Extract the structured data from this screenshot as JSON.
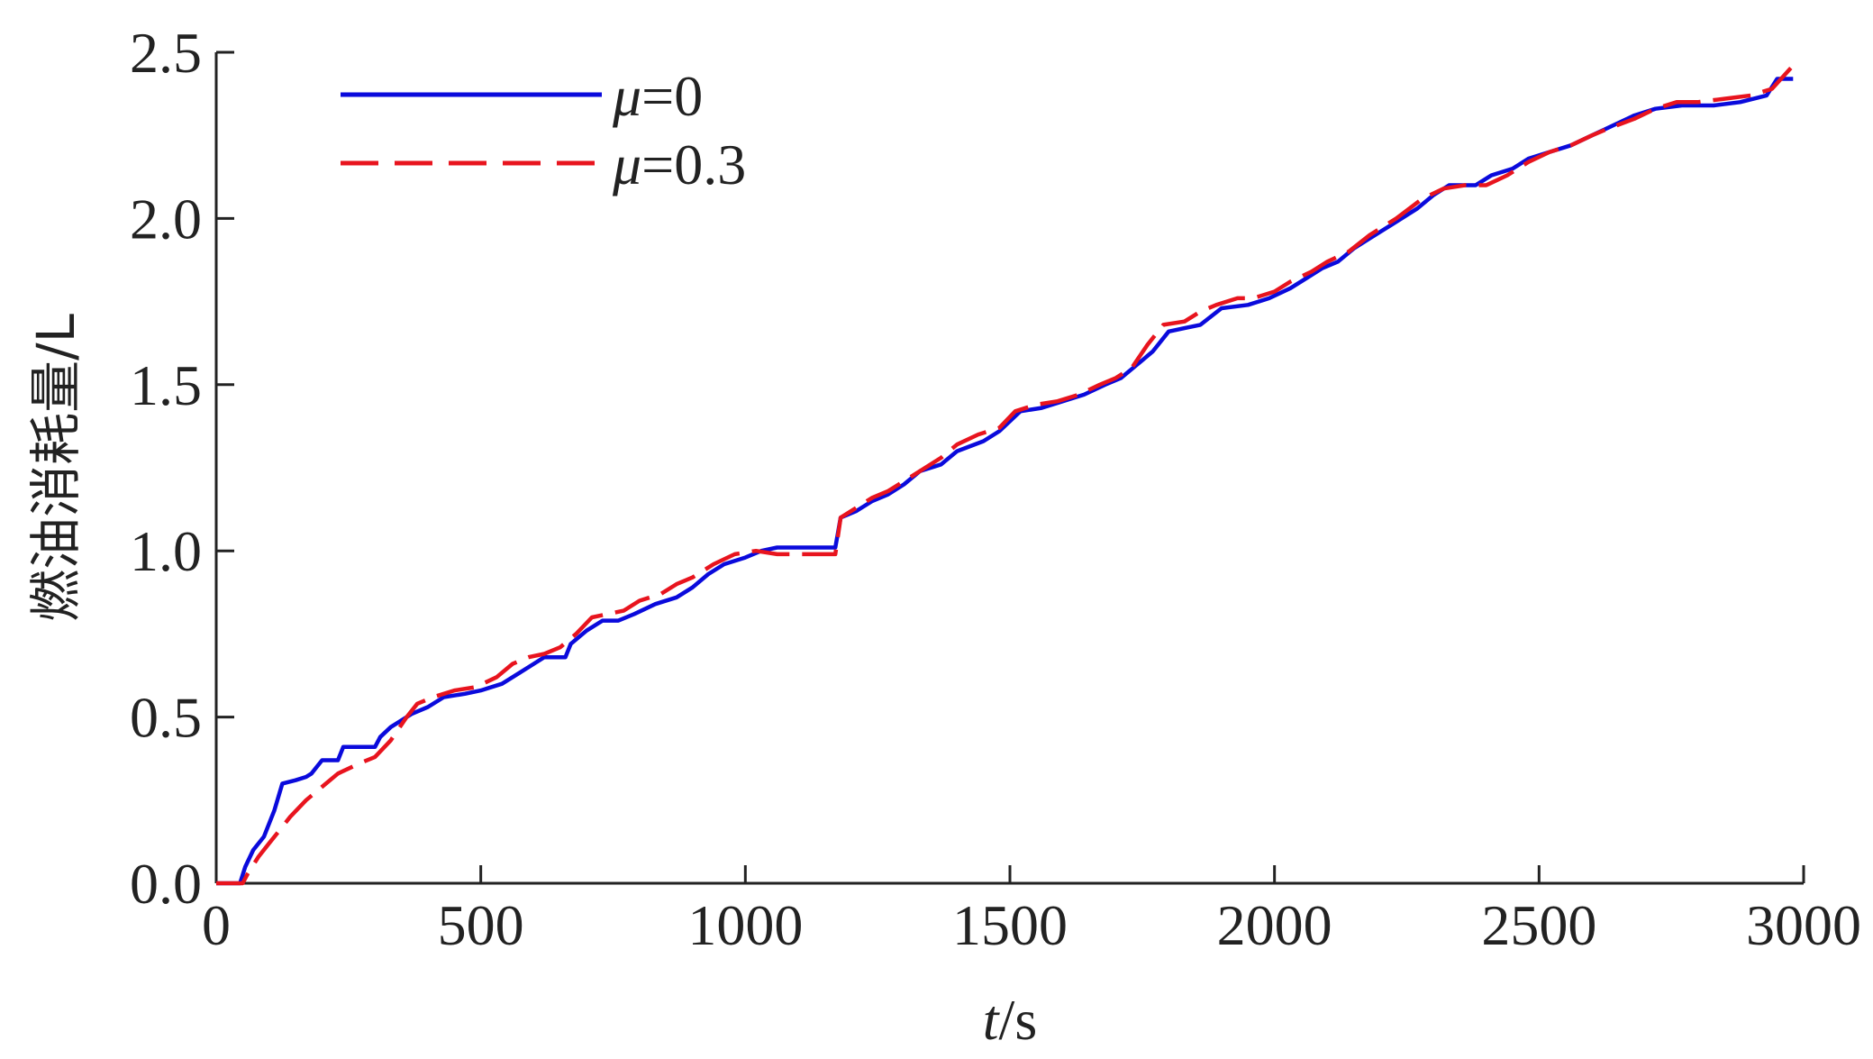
{
  "chart_data": {
    "type": "line",
    "xlabel_var": "t",
    "xlabel_unit": "/s",
    "ylabel": "燃油消耗量/L",
    "xlim": [
      0,
      3000
    ],
    "ylim": [
      0,
      2.5
    ],
    "xticks": [
      "0",
      "500",
      "1000",
      "1500",
      "2000",
      "2500",
      "3000"
    ],
    "yticks": [
      "0.0",
      "0.5",
      "1.0",
      "1.5",
      "2.0",
      "2.5"
    ],
    "grid": false,
    "legend_position": "top-left",
    "series": [
      {
        "name_var": "μ",
        "name_value": "=0",
        "color": "#0a0adc",
        "style": "solid",
        "points": [
          [
            0,
            0
          ],
          [
            45,
            0
          ],
          [
            55,
            0.05
          ],
          [
            70,
            0.1
          ],
          [
            90,
            0.14
          ],
          [
            110,
            0.22
          ],
          [
            125,
            0.3
          ],
          [
            150,
            0.31
          ],
          [
            170,
            0.32
          ],
          [
            180,
            0.33
          ],
          [
            190,
            0.35
          ],
          [
            200,
            0.37
          ],
          [
            230,
            0.37
          ],
          [
            240,
            0.41
          ],
          [
            300,
            0.41
          ],
          [
            310,
            0.44
          ],
          [
            330,
            0.47
          ],
          [
            350,
            0.49
          ],
          [
            370,
            0.51
          ],
          [
            400,
            0.53
          ],
          [
            430,
            0.56
          ],
          [
            470,
            0.57
          ],
          [
            500,
            0.58
          ],
          [
            540,
            0.6
          ],
          [
            570,
            0.63
          ],
          [
            600,
            0.66
          ],
          [
            620,
            0.68
          ],
          [
            660,
            0.68
          ],
          [
            670,
            0.72
          ],
          [
            700,
            0.76
          ],
          [
            730,
            0.79
          ],
          [
            760,
            0.79
          ],
          [
            790,
            0.81
          ],
          [
            830,
            0.84
          ],
          [
            870,
            0.86
          ],
          [
            900,
            0.89
          ],
          [
            930,
            0.93
          ],
          [
            960,
            0.96
          ],
          [
            1000,
            0.98
          ],
          [
            1030,
            1.0
          ],
          [
            1060,
            1.01
          ],
          [
            1170,
            1.01
          ],
          [
            1180,
            1.1
          ],
          [
            1210,
            1.12
          ],
          [
            1240,
            1.15
          ],
          [
            1270,
            1.17
          ],
          [
            1300,
            1.2
          ],
          [
            1330,
            1.24
          ],
          [
            1370,
            1.26
          ],
          [
            1400,
            1.3
          ],
          [
            1450,
            1.33
          ],
          [
            1480,
            1.36
          ],
          [
            1520,
            1.42
          ],
          [
            1560,
            1.43
          ],
          [
            1600,
            1.45
          ],
          [
            1640,
            1.47
          ],
          [
            1680,
            1.5
          ],
          [
            1710,
            1.52
          ],
          [
            1740,
            1.56
          ],
          [
            1770,
            1.6
          ],
          [
            1800,
            1.66
          ],
          [
            1830,
            1.67
          ],
          [
            1860,
            1.68
          ],
          [
            1900,
            1.73
          ],
          [
            1950,
            1.74
          ],
          [
            1990,
            1.76
          ],
          [
            2030,
            1.79
          ],
          [
            2060,
            1.82
          ],
          [
            2090,
            1.85
          ],
          [
            2120,
            1.87
          ],
          [
            2150,
            1.91
          ],
          [
            2180,
            1.94
          ],
          [
            2220,
            1.98
          ],
          [
            2270,
            2.03
          ],
          [
            2300,
            2.07
          ],
          [
            2330,
            2.1
          ],
          [
            2380,
            2.1
          ],
          [
            2410,
            2.13
          ],
          [
            2450,
            2.15
          ],
          [
            2480,
            2.18
          ],
          [
            2520,
            2.2
          ],
          [
            2560,
            2.22
          ],
          [
            2600,
            2.25
          ],
          [
            2640,
            2.28
          ],
          [
            2680,
            2.31
          ],
          [
            2720,
            2.33
          ],
          [
            2770,
            2.34
          ],
          [
            2830,
            2.34
          ],
          [
            2880,
            2.35
          ],
          [
            2930,
            2.37
          ],
          [
            2950,
            2.42
          ],
          [
            2980,
            2.42
          ]
        ]
      },
      {
        "name_var": "μ",
        "name_value": "=0.3",
        "color": "#e8141e",
        "style": "dashed",
        "points": [
          [
            0,
            0
          ],
          [
            50,
            0
          ],
          [
            60,
            0.03
          ],
          [
            80,
            0.08
          ],
          [
            100,
            0.12
          ],
          [
            120,
            0.16
          ],
          [
            140,
            0.2
          ],
          [
            170,
            0.25
          ],
          [
            200,
            0.29
          ],
          [
            230,
            0.33
          ],
          [
            270,
            0.36
          ],
          [
            300,
            0.38
          ],
          [
            330,
            0.43
          ],
          [
            360,
            0.5
          ],
          [
            380,
            0.54
          ],
          [
            410,
            0.56
          ],
          [
            450,
            0.58
          ],
          [
            490,
            0.59
          ],
          [
            530,
            0.62
          ],
          [
            560,
            0.66
          ],
          [
            590,
            0.68
          ],
          [
            620,
            0.69
          ],
          [
            650,
            0.71
          ],
          [
            680,
            0.75
          ],
          [
            710,
            0.8
          ],
          [
            740,
            0.81
          ],
          [
            770,
            0.82
          ],
          [
            800,
            0.85
          ],
          [
            840,
            0.87
          ],
          [
            870,
            0.9
          ],
          [
            900,
            0.92
          ],
          [
            940,
            0.96
          ],
          [
            980,
            0.99
          ],
          [
            1020,
            1.0
          ],
          [
            1060,
            0.99
          ],
          [
            1100,
            0.99
          ],
          [
            1170,
            0.99
          ],
          [
            1180,
            1.1
          ],
          [
            1210,
            1.13
          ],
          [
            1240,
            1.16
          ],
          [
            1270,
            1.18
          ],
          [
            1300,
            1.21
          ],
          [
            1330,
            1.24
          ],
          [
            1370,
            1.28
          ],
          [
            1400,
            1.32
          ],
          [
            1440,
            1.35
          ],
          [
            1480,
            1.37
          ],
          [
            1510,
            1.42
          ],
          [
            1550,
            1.44
          ],
          [
            1590,
            1.45
          ],
          [
            1630,
            1.47
          ],
          [
            1670,
            1.5
          ],
          [
            1700,
            1.52
          ],
          [
            1730,
            1.55
          ],
          [
            1760,
            1.62
          ],
          [
            1790,
            1.68
          ],
          [
            1830,
            1.69
          ],
          [
            1860,
            1.72
          ],
          [
            1890,
            1.74
          ],
          [
            1930,
            1.76
          ],
          [
            1960,
            1.76
          ],
          [
            2000,
            1.78
          ],
          [
            2030,
            1.81
          ],
          [
            2070,
            1.84
          ],
          [
            2100,
            1.87
          ],
          [
            2140,
            1.9
          ],
          [
            2180,
            1.95
          ],
          [
            2230,
            2.0
          ],
          [
            2280,
            2.06
          ],
          [
            2320,
            2.09
          ],
          [
            2360,
            2.1
          ],
          [
            2400,
            2.1
          ],
          [
            2440,
            2.13
          ],
          [
            2480,
            2.17
          ],
          [
            2520,
            2.2
          ],
          [
            2560,
            2.22
          ],
          [
            2600,
            2.25
          ],
          [
            2630,
            2.27
          ],
          [
            2680,
            2.3
          ],
          [
            2720,
            2.33
          ],
          [
            2760,
            2.35
          ],
          [
            2800,
            2.35
          ],
          [
            2850,
            2.36
          ],
          [
            2900,
            2.37
          ],
          [
            2940,
            2.39
          ],
          [
            2980,
            2.46
          ]
        ]
      }
    ]
  }
}
